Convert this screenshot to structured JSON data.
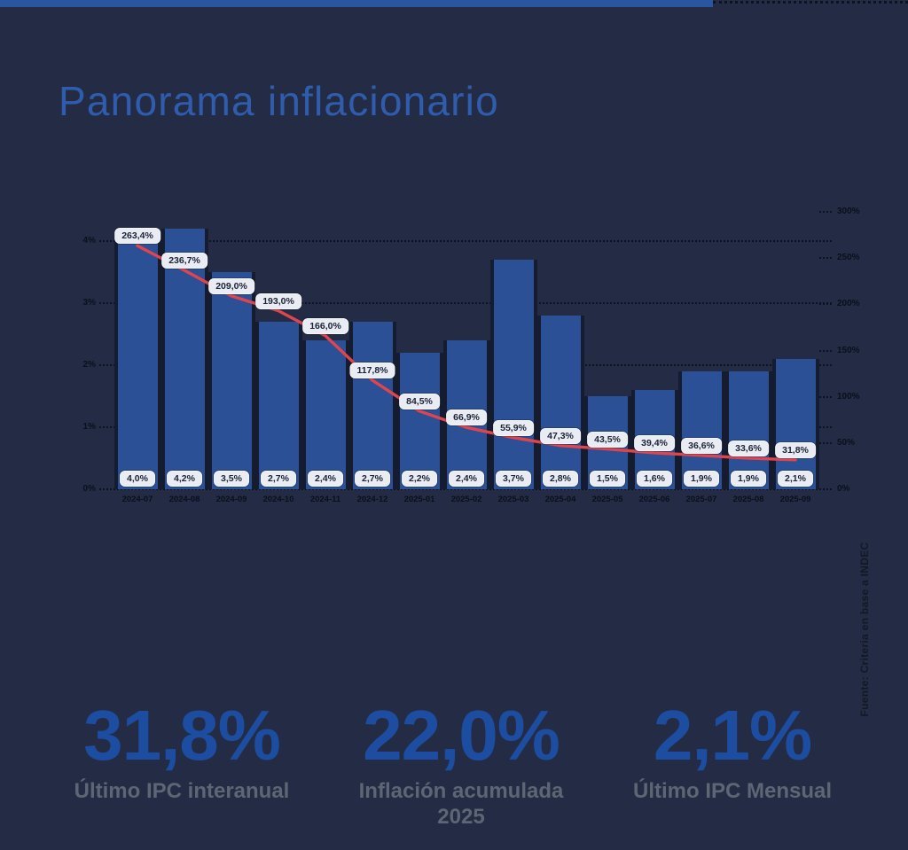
{
  "title": "Panorama inflacionario",
  "source": "Fuente: Criteria en base a INDEC",
  "stats": [
    {
      "value": "31,8%",
      "label": "Último IPC interanual"
    },
    {
      "value": "22,0%",
      "label": "Inflación acumulada",
      "label2": "2025"
    },
    {
      "value": "2,1%",
      "label": "Último IPC Mensual"
    }
  ],
  "chart_data": {
    "type": "bar",
    "title": "",
    "categories": [
      "2024-07",
      "2024-08",
      "2024-09",
      "2024-10",
      "2024-11",
      "2024-12",
      "2025-01",
      "2025-02",
      "2025-03",
      "2025-04",
      "2025-05",
      "2025-06",
      "2025-07",
      "2025-08",
      "2025-09"
    ],
    "series": [
      {
        "name": "IPC mensual",
        "type": "bar",
        "axis": "left",
        "values": [
          4.0,
          4.2,
          3.5,
          2.7,
          2.4,
          2.7,
          2.2,
          2.4,
          3.7,
          2.8,
          1.5,
          1.6,
          1.9,
          1.9,
          2.1
        ],
        "labels": [
          "4,0%",
          "4,2%",
          "3,5%",
          "2,7%",
          "2,4%",
          "2,7%",
          "2,2%",
          "2,4%",
          "3,7%",
          "2,8%",
          "1,5%",
          "1,6%",
          "1,9%",
          "1,9%",
          "2,1%"
        ]
      },
      {
        "name": "IPC interanual",
        "type": "line",
        "axis": "right",
        "values": [
          263.4,
          236.7,
          209.0,
          193.0,
          166.0,
          117.8,
          84.5,
          66.9,
          55.9,
          47.3,
          43.5,
          39.4,
          36.6,
          33.6,
          31.8
        ],
        "labels": [
          "263,4%",
          "236,7%",
          "209,0%",
          "193,0%",
          "166,0%",
          "117,8%",
          "84,5%",
          "66,9%",
          "55,9%",
          "47,3%",
          "43,5%",
          "39,4%",
          "36,6%",
          "33,6%",
          "31,8%"
        ]
      }
    ],
    "left_axis": {
      "tick_labels": [
        "0%",
        "1%",
        "2%",
        "3%",
        "4%"
      ],
      "tick_values": [
        0,
        1,
        2,
        3,
        4
      ],
      "range": [
        0,
        4
      ]
    },
    "right_axis": {
      "tick_labels": [
        "0%",
        "50%",
        "100%",
        "150%",
        "200%",
        "250%",
        "300%"
      ],
      "tick_values": [
        0,
        50,
        100,
        150,
        200,
        250,
        300
      ],
      "range": [
        0,
        300
      ]
    },
    "grid": "dotted-horizontal",
    "legend": "none",
    "colors": {
      "background": "#232c44",
      "accent_strip": "#2a559f",
      "title": "#2f5cad",
      "bar": "#2b5095",
      "bar_edge": "#151c2f",
      "line": "#e0454f",
      "pill_background": "#e9ecf3",
      "pill_text": "#1b2336",
      "axis_text": "#0a0f1c",
      "stat_value": "#1c4da1",
      "stat_label": "#5d6674"
    }
  }
}
